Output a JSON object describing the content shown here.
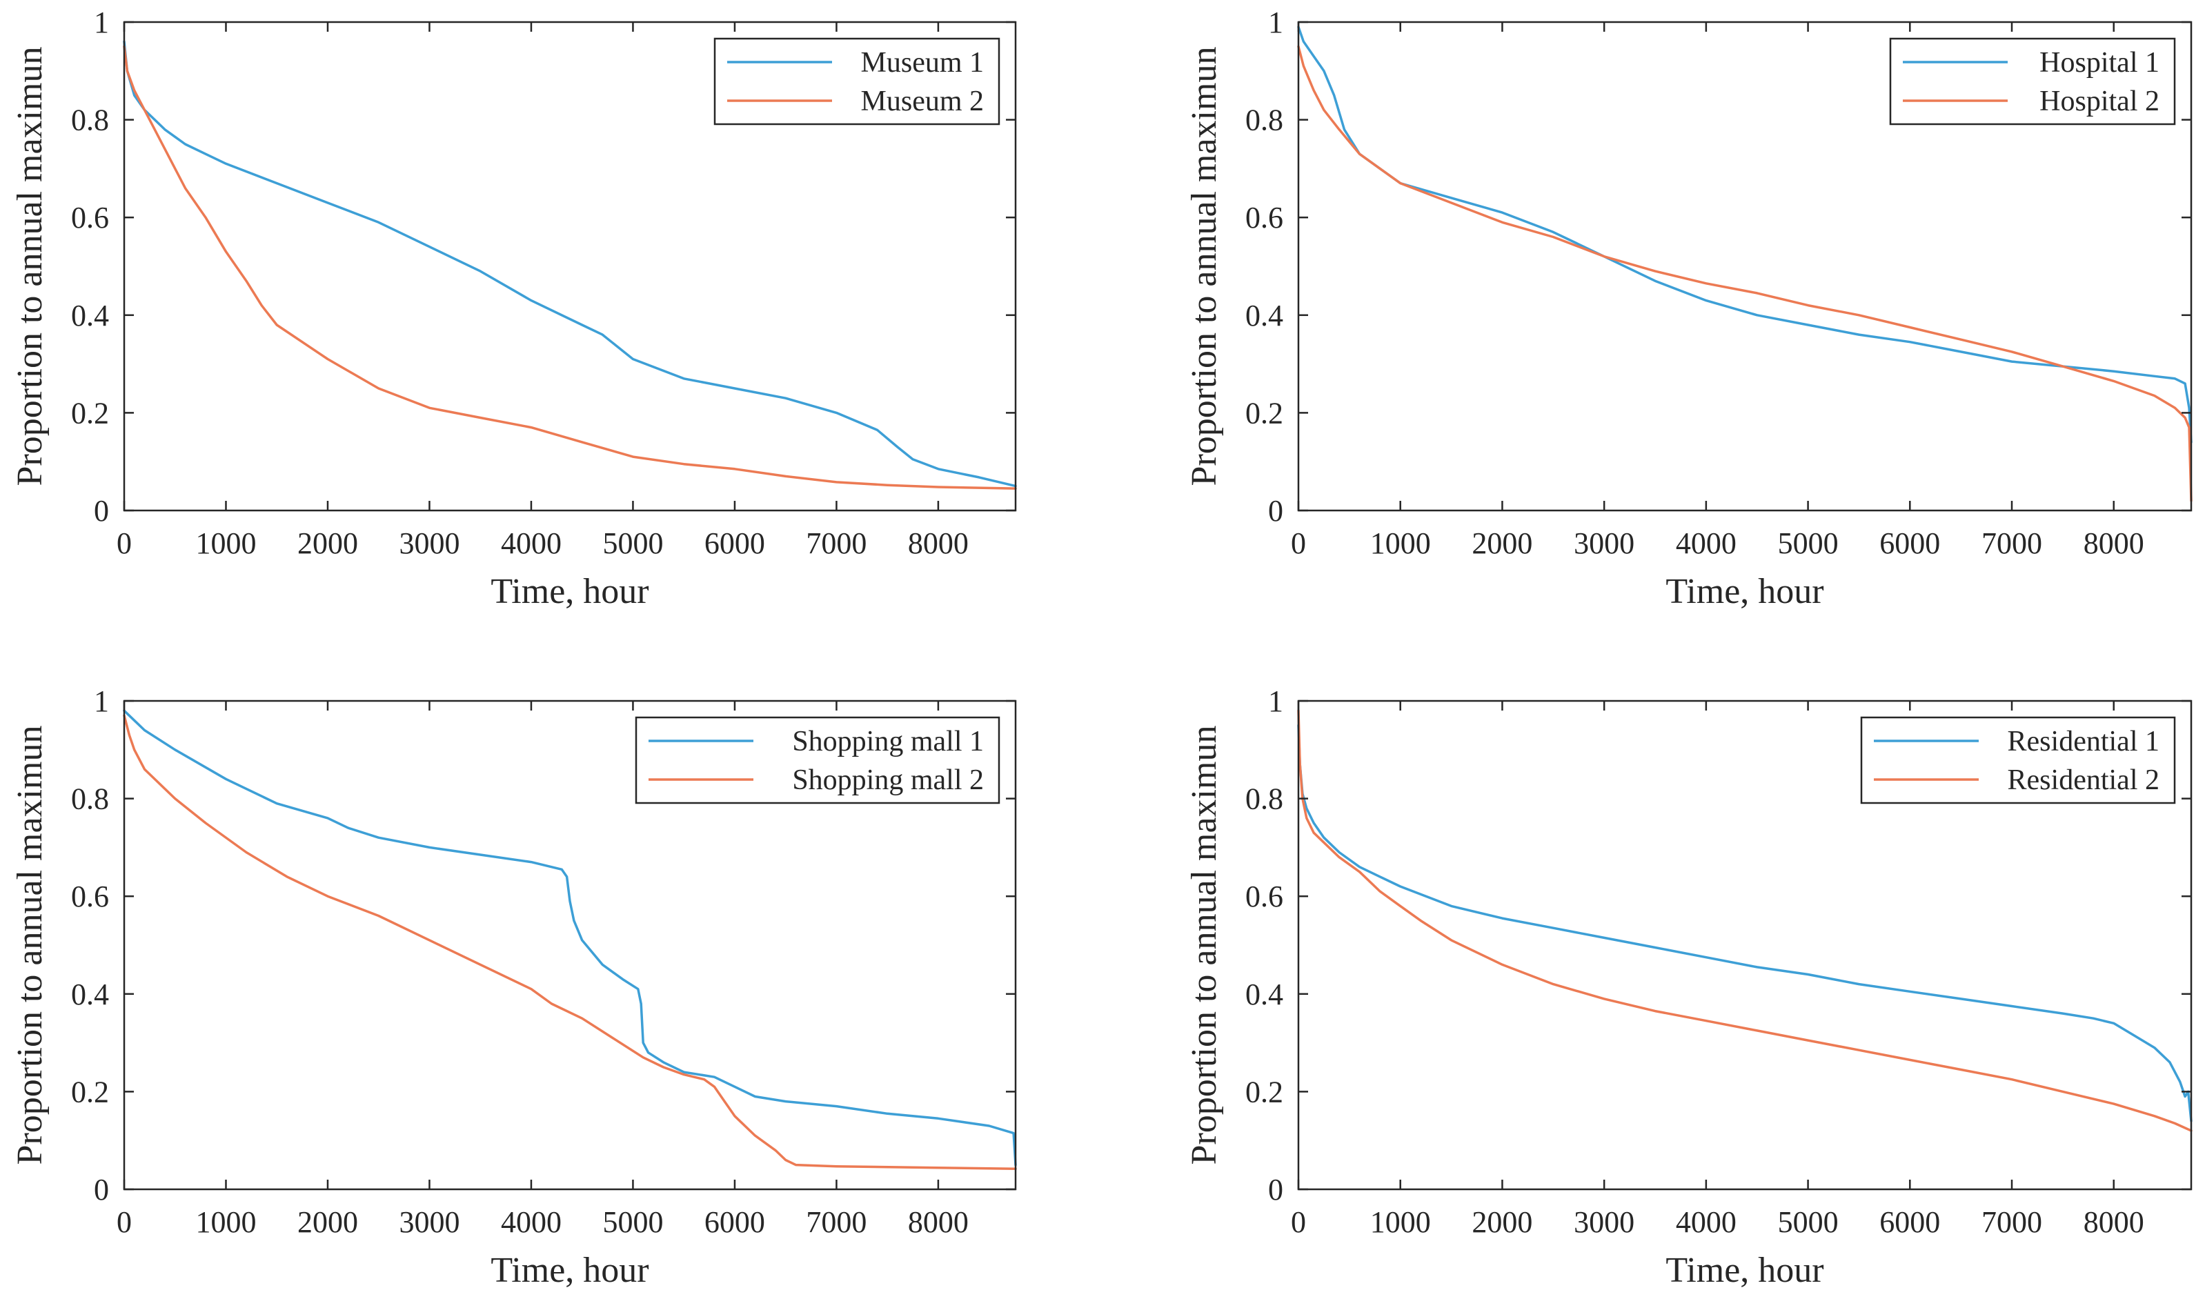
{
  "colors": {
    "series1": "#3d9fd6",
    "series2": "#ec7a53",
    "axis": "#262626"
  },
  "chart_data": [
    {
      "type": "line",
      "title": "",
      "xlabel": "Time, hour",
      "ylabel": "Proportion to annual maximun",
      "xlim": [
        0,
        8760
      ],
      "ylim": [
        0,
        1
      ],
      "xticks": [
        0,
        1000,
        2000,
        3000,
        4000,
        5000,
        6000,
        7000,
        8000
      ],
      "xtick_labels": [
        "0",
        "1000",
        "2000",
        "3000",
        "4000",
        "5000",
        "6000",
        "7000",
        "8000"
      ],
      "yticks": [
        0,
        0.2,
        0.4,
        0.6,
        0.8,
        1
      ],
      "ytick_labels": [
        "0",
        "0.2",
        "0.4",
        "0.6",
        "0.8",
        "1"
      ],
      "legend_position": "top-right",
      "series": [
        {
          "name": "Museum 1",
          "x": [
            0,
            30,
            100,
            200,
            400,
            600,
            800,
            1000,
            1500,
            2000,
            2500,
            3000,
            3500,
            4000,
            4500,
            4700,
            5000,
            5500,
            6000,
            6500,
            7000,
            7400,
            7600,
            7750,
            8000,
            8400,
            8760
          ],
          "y": [
            0.96,
            0.9,
            0.85,
            0.82,
            0.78,
            0.75,
            0.73,
            0.71,
            0.67,
            0.63,
            0.59,
            0.54,
            0.49,
            0.43,
            0.38,
            0.36,
            0.31,
            0.27,
            0.25,
            0.23,
            0.2,
            0.165,
            0.13,
            0.105,
            0.085,
            0.068,
            0.05
          ]
        },
        {
          "name": "Museum 2",
          "x": [
            0,
            30,
            100,
            200,
            400,
            600,
            800,
            1000,
            1200,
            1350,
            1500,
            2000,
            2500,
            3000,
            3500,
            4000,
            4500,
            5000,
            5500,
            6000,
            6500,
            7000,
            7500,
            8000,
            8760
          ],
          "y": [
            0.95,
            0.9,
            0.86,
            0.82,
            0.74,
            0.66,
            0.6,
            0.53,
            0.47,
            0.42,
            0.38,
            0.31,
            0.25,
            0.21,
            0.19,
            0.17,
            0.14,
            0.11,
            0.095,
            0.085,
            0.07,
            0.058,
            0.052,
            0.048,
            0.045
          ]
        }
      ]
    },
    {
      "type": "line",
      "title": "",
      "xlabel": "Time, hour",
      "ylabel": "Proportion to annual maximun",
      "xlim": [
        0,
        8760
      ],
      "ylim": [
        0,
        1
      ],
      "xticks": [
        0,
        1000,
        2000,
        3000,
        4000,
        5000,
        6000,
        7000,
        8000
      ],
      "xtick_labels": [
        "0",
        "1000",
        "2000",
        "3000",
        "4000",
        "5000",
        "6000",
        "7000",
        "8000"
      ],
      "yticks": [
        0,
        0.2,
        0.4,
        0.6,
        0.8,
        1
      ],
      "ytick_labels": [
        "0",
        "0.2",
        "0.4",
        "0.6",
        "0.8",
        "1"
      ],
      "legend_position": "top-right",
      "series": [
        {
          "name": "Hospital 1",
          "x": [
            0,
            50,
            150,
            250,
            350,
            450,
            600,
            800,
            1000,
            1500,
            2000,
            2500,
            3000,
            3500,
            4000,
            4500,
            5000,
            5500,
            6000,
            6500,
            7000,
            7500,
            8000,
            8400,
            8600,
            8700,
            8740,
            8760
          ],
          "y": [
            0.99,
            0.96,
            0.93,
            0.9,
            0.85,
            0.78,
            0.73,
            0.7,
            0.67,
            0.64,
            0.61,
            0.57,
            0.52,
            0.47,
            0.43,
            0.4,
            0.38,
            0.36,
            0.345,
            0.325,
            0.305,
            0.295,
            0.285,
            0.275,
            0.27,
            0.26,
            0.21,
            0.14
          ]
        },
        {
          "name": "Hospital 2",
          "x": [
            0,
            50,
            150,
            250,
            400,
            600,
            800,
            1000,
            1500,
            2000,
            2500,
            3000,
            3500,
            4000,
            4500,
            5000,
            5500,
            6000,
            6500,
            7000,
            7500,
            8000,
            8400,
            8600,
            8700,
            8740,
            8760
          ],
          "y": [
            0.95,
            0.91,
            0.86,
            0.82,
            0.78,
            0.73,
            0.7,
            0.67,
            0.63,
            0.59,
            0.56,
            0.52,
            0.49,
            0.465,
            0.445,
            0.42,
            0.4,
            0.375,
            0.35,
            0.325,
            0.295,
            0.265,
            0.235,
            0.21,
            0.19,
            0.17,
            0.02
          ]
        }
      ]
    },
    {
      "type": "line",
      "title": "",
      "xlabel": "Time, hour",
      "ylabel": "Proportion to annual maximun",
      "xlim": [
        0,
        8760
      ],
      "ylim": [
        0,
        1
      ],
      "xticks": [
        0,
        1000,
        2000,
        3000,
        4000,
        5000,
        6000,
        7000,
        8000
      ],
      "xtick_labels": [
        "0",
        "1000",
        "2000",
        "3000",
        "4000",
        "5000",
        "6000",
        "7000",
        "8000"
      ],
      "yticks": [
        0,
        0.2,
        0.4,
        0.6,
        0.8,
        1
      ],
      "ytick_labels": [
        "0",
        "0.2",
        "0.4",
        "0.6",
        "0.8",
        "1"
      ],
      "legend_position": "top-right",
      "series": [
        {
          "name": "Shopping mall 1",
          "x": [
            0,
            100,
            200,
            500,
            1000,
            1500,
            2000,
            2200,
            2500,
            3000,
            3500,
            4000,
            4300,
            4350,
            4380,
            4420,
            4500,
            4700,
            4900,
            5050,
            5080,
            5100,
            5150,
            5300,
            5500,
            5800,
            6000,
            6200,
            6500,
            7000,
            7500,
            8000,
            8500,
            8740,
            8760
          ],
          "y": [
            0.98,
            0.96,
            0.94,
            0.9,
            0.84,
            0.79,
            0.76,
            0.74,
            0.72,
            0.7,
            0.685,
            0.67,
            0.655,
            0.64,
            0.59,
            0.55,
            0.51,
            0.46,
            0.43,
            0.41,
            0.38,
            0.3,
            0.28,
            0.26,
            0.24,
            0.23,
            0.21,
            0.19,
            0.18,
            0.17,
            0.155,
            0.145,
            0.13,
            0.115,
            0.05
          ]
        },
        {
          "name": "Shopping mall 2",
          "x": [
            0,
            50,
            100,
            200,
            300,
            500,
            800,
            1200,
            1600,
            2000,
            2500,
            3000,
            3500,
            4000,
            4200,
            4500,
            4800,
            5100,
            5300,
            5500,
            5700,
            5800,
            5900,
            6000,
            6200,
            6400,
            6500,
            6600,
            7000,
            8000,
            8760
          ],
          "y": [
            0.97,
            0.93,
            0.9,
            0.86,
            0.84,
            0.8,
            0.75,
            0.69,
            0.64,
            0.6,
            0.56,
            0.51,
            0.46,
            0.41,
            0.38,
            0.35,
            0.31,
            0.27,
            0.25,
            0.235,
            0.225,
            0.21,
            0.18,
            0.15,
            0.11,
            0.08,
            0.06,
            0.05,
            0.047,
            0.044,
            0.042
          ]
        }
      ]
    },
    {
      "type": "line",
      "title": "",
      "xlabel": "Time, hour",
      "ylabel": "Proportion to annual maximun",
      "xlim": [
        0,
        8760
      ],
      "ylim": [
        0,
        1
      ],
      "xticks": [
        0,
        1000,
        2000,
        3000,
        4000,
        5000,
        6000,
        7000,
        8000
      ],
      "xtick_labels": [
        "0",
        "1000",
        "2000",
        "3000",
        "4000",
        "5000",
        "6000",
        "7000",
        "8000"
      ],
      "yticks": [
        0,
        0.2,
        0.4,
        0.6,
        0.8,
        1
      ],
      "ytick_labels": [
        "0",
        "0.2",
        "0.4",
        "0.6",
        "0.8",
        "1"
      ],
      "legend_position": "top-right",
      "series": [
        {
          "name": "Residential 1",
          "x": [
            0,
            15,
            40,
            80,
            150,
            250,
            400,
            600,
            800,
            1000,
            1500,
            2000,
            2500,
            3000,
            3500,
            4000,
            4500,
            5000,
            5500,
            6000,
            6500,
            7000,
            7500,
            7800,
            8000,
            8200,
            8400,
            8550,
            8650,
            8700,
            8730,
            8760
          ],
          "y": [
            0.95,
            0.87,
            0.81,
            0.78,
            0.75,
            0.72,
            0.69,
            0.66,
            0.64,
            0.62,
            0.58,
            0.555,
            0.535,
            0.515,
            0.495,
            0.475,
            0.455,
            0.44,
            0.42,
            0.405,
            0.39,
            0.375,
            0.36,
            0.35,
            0.34,
            0.315,
            0.29,
            0.26,
            0.22,
            0.19,
            0.2,
            0.14
          ]
        },
        {
          "name": "Residential 2",
          "x": [
            0,
            15,
            40,
            80,
            150,
            250,
            400,
            600,
            800,
            1000,
            1200,
            1500,
            2000,
            2500,
            3000,
            3500,
            4000,
            4500,
            5000,
            5500,
            6000,
            6500,
            7000,
            7500,
            8000,
            8400,
            8600,
            8760
          ],
          "y": [
            0.98,
            0.87,
            0.8,
            0.76,
            0.73,
            0.71,
            0.68,
            0.65,
            0.61,
            0.58,
            0.55,
            0.51,
            0.46,
            0.42,
            0.39,
            0.365,
            0.345,
            0.325,
            0.305,
            0.285,
            0.265,
            0.245,
            0.225,
            0.2,
            0.175,
            0.15,
            0.135,
            0.12
          ]
        }
      ]
    }
  ]
}
